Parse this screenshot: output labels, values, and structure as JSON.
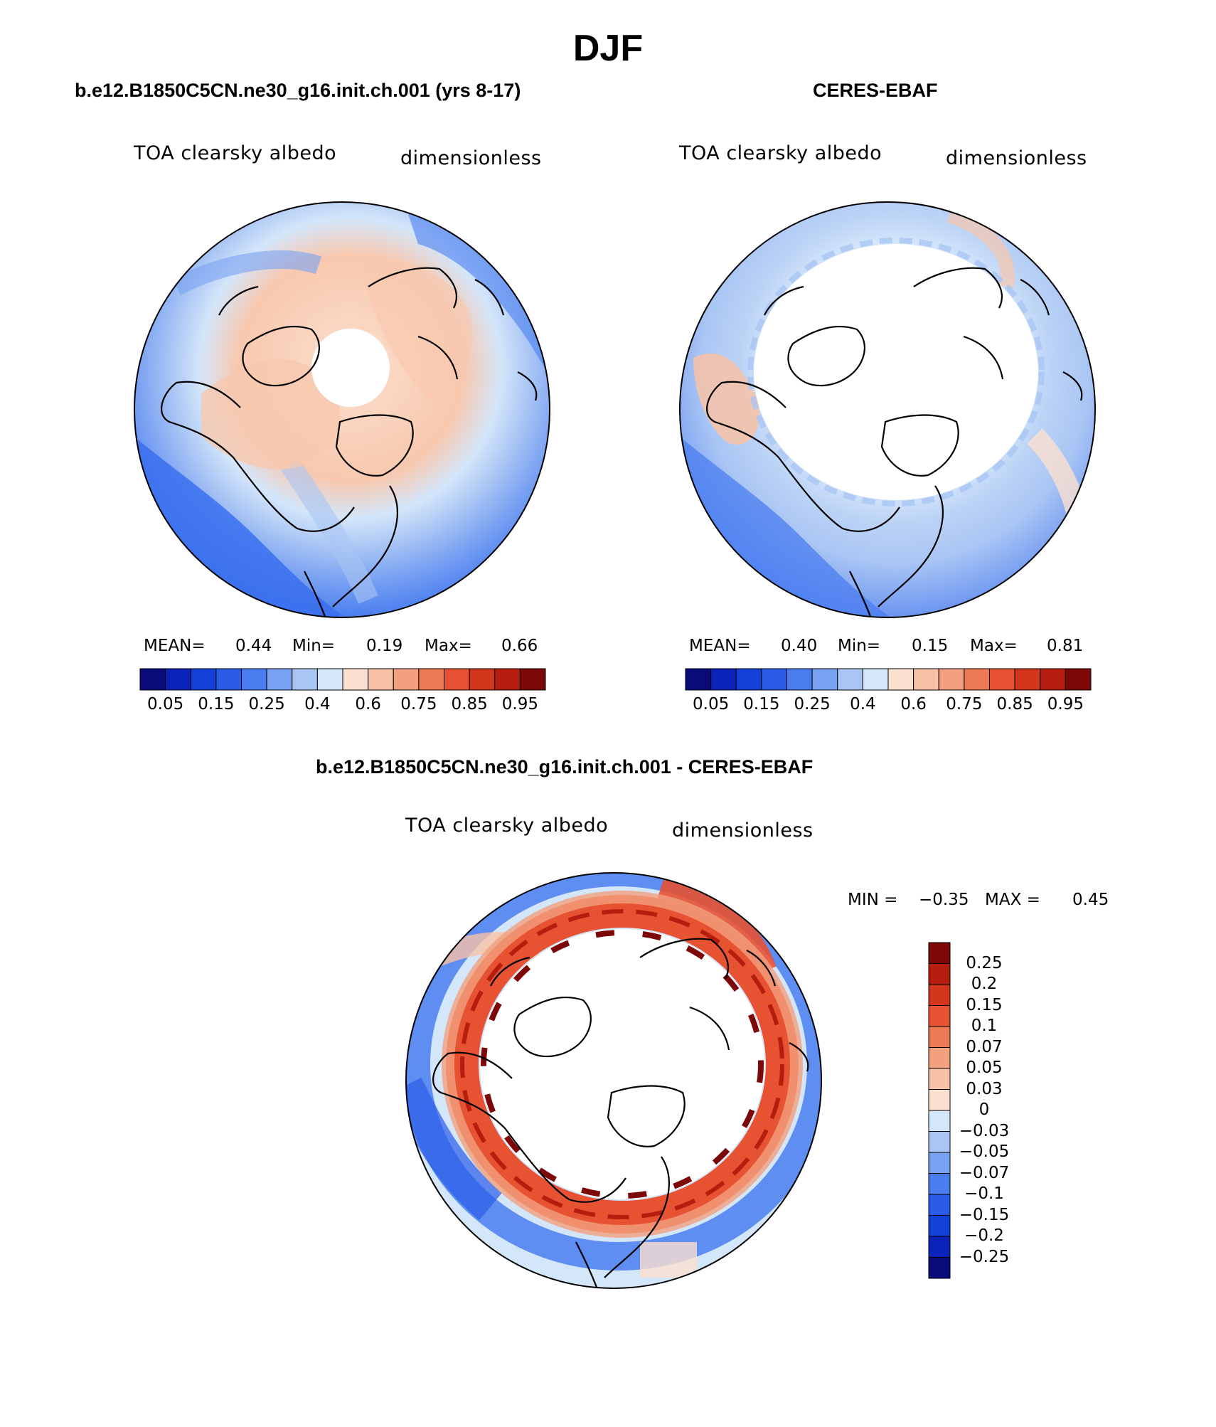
{
  "figure": {
    "title": "DJF"
  },
  "panels": [
    {
      "id": "model",
      "title": "b.e12.B1850C5CN.ne30_g16.init.ch.001 (yrs 8-17)",
      "variable": "TOA clearsky albedo",
      "units": "dimensionless",
      "stats": {
        "mean_label": "MEAN=",
        "mean": "0.44",
        "min_label": "Min=",
        "min": "0.19",
        "max_label": "Max=",
        "max": "0.66"
      },
      "colorbar_ticks": [
        "0.05",
        "0.15",
        "0.25",
        "0.4",
        "0.6",
        "0.75",
        "0.85",
        "0.95"
      ],
      "colorbar_colors": [
        "#0a0a7a",
        "#0b23b8",
        "#1340d6",
        "#2a5ce8",
        "#4a7ef0",
        "#7aa2f2",
        "#a9c5f4",
        "#d4e6fa",
        "#fbe0cf",
        "#f8c2a6",
        "#f3a07e",
        "#ee7a55",
        "#e65232",
        "#d2361d",
        "#b51d0e",
        "#7d0808"
      ]
    },
    {
      "id": "obs",
      "title": "CERES-EBAF",
      "variable": "TOA clearsky albedo",
      "units": "dimensionless",
      "stats": {
        "mean_label": "MEAN=",
        "mean": "0.40",
        "min_label": "Min=",
        "min": "0.15",
        "max_label": "Max=",
        "max": "0.81"
      },
      "colorbar_ticks": [
        "0.05",
        "0.15",
        "0.25",
        "0.4",
        "0.6",
        "0.75",
        "0.85",
        "0.95"
      ],
      "colorbar_colors": [
        "#0a0a7a",
        "#0b23b8",
        "#1340d6",
        "#2a5ce8",
        "#4a7ef0",
        "#7aa2f2",
        "#a9c5f4",
        "#d4e6fa",
        "#fbe0cf",
        "#f8c2a6",
        "#f3a07e",
        "#ee7a55",
        "#e65232",
        "#d2361d",
        "#b51d0e",
        "#7d0808"
      ]
    },
    {
      "id": "diff",
      "title": "b.e12.B1850C5CN.ne30_g16.init.ch.001 - CERES-EBAF",
      "variable": "TOA clearsky albedo",
      "units": "dimensionless",
      "stats": {
        "min_label": "MIN =",
        "min": "−0.35",
        "max_label": "MAX =",
        "max": "0.45"
      },
      "colorbar_ticks": [
        "0.25",
        "0.2",
        "0.15",
        "0.1",
        "0.07",
        "0.05",
        "0.03",
        "0",
        "−0.03",
        "−0.05",
        "−0.07",
        "−0.1",
        "−0.15",
        "−0.2",
        "−0.25"
      ],
      "colorbar_colors": [
        "#7d0808",
        "#b51d0e",
        "#d2361d",
        "#e65232",
        "#ee7a55",
        "#f3a07e",
        "#f8c2a6",
        "#fbe0cf",
        "#d4e6fa",
        "#a9c5f4",
        "#7aa2f2",
        "#4a7ef0",
        "#2a5ce8",
        "#1340d6",
        "#0b23b8",
        "#0a0a7a"
      ]
    }
  ]
}
